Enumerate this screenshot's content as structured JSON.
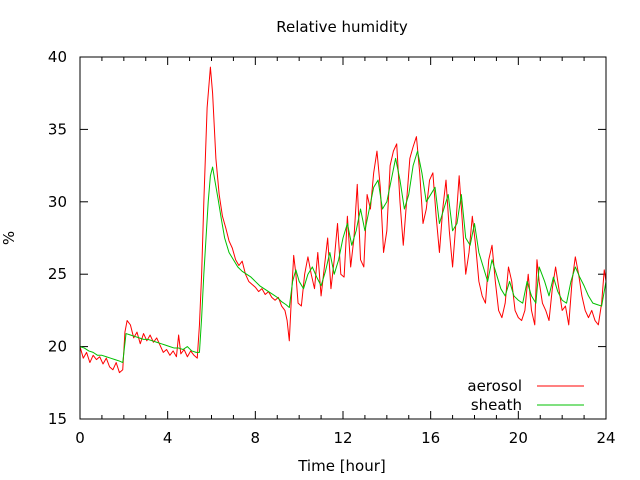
{
  "chart_data": {
    "type": "line",
    "title": "Relative humidity",
    "xlabel": "Time [hour]",
    "ylabel": "%",
    "xlim": [
      0,
      24
    ],
    "ylim": [
      15,
      40
    ],
    "x_ticks": [
      "0",
      "4",
      "8",
      "12",
      "16",
      "20",
      "24"
    ],
    "y_ticks": [
      "15",
      "20",
      "25",
      "30",
      "35",
      "40"
    ],
    "grid": false,
    "legend_position": "bottom-right",
    "series": [
      {
        "name": "aerosol",
        "color": "#ff0000",
        "points": [
          [
            0.0,
            20.0
          ],
          [
            0.15,
            19.2
          ],
          [
            0.3,
            19.6
          ],
          [
            0.45,
            18.9
          ],
          [
            0.6,
            19.4
          ],
          [
            0.75,
            19.1
          ],
          [
            0.9,
            19.3
          ],
          [
            1.05,
            18.8
          ],
          [
            1.2,
            19.2
          ],
          [
            1.35,
            18.6
          ],
          [
            1.5,
            18.4
          ],
          [
            1.65,
            18.9
          ],
          [
            1.8,
            18.2
          ],
          [
            1.95,
            18.4
          ],
          [
            2.05,
            21.0
          ],
          [
            2.15,
            21.8
          ],
          [
            2.3,
            21.5
          ],
          [
            2.45,
            20.6
          ],
          [
            2.6,
            21.0
          ],
          [
            2.75,
            20.2
          ],
          [
            2.9,
            20.9
          ],
          [
            3.05,
            20.4
          ],
          [
            3.2,
            20.8
          ],
          [
            3.35,
            20.3
          ],
          [
            3.5,
            20.6
          ],
          [
            3.65,
            20.1
          ],
          [
            3.8,
            19.6
          ],
          [
            3.95,
            19.8
          ],
          [
            4.1,
            19.4
          ],
          [
            4.25,
            19.7
          ],
          [
            4.4,
            19.3
          ],
          [
            4.5,
            20.8
          ],
          [
            4.6,
            19.5
          ],
          [
            4.75,
            19.8
          ],
          [
            4.9,
            19.3
          ],
          [
            5.05,
            19.7
          ],
          [
            5.2,
            19.4
          ],
          [
            5.35,
            19.2
          ],
          [
            5.45,
            21.5
          ],
          [
            5.55,
            25.0
          ],
          [
            5.65,
            30.0
          ],
          [
            5.8,
            36.5
          ],
          [
            5.95,
            39.3
          ],
          [
            6.05,
            37.5
          ],
          [
            6.2,
            33.0
          ],
          [
            6.35,
            30.5
          ],
          [
            6.5,
            29.0
          ],
          [
            6.65,
            28.2
          ],
          [
            6.8,
            27.3
          ],
          [
            6.95,
            26.8
          ],
          [
            7.1,
            26.0
          ],
          [
            7.25,
            25.6
          ],
          [
            7.4,
            25.9
          ],
          [
            7.55,
            25.0
          ],
          [
            7.7,
            24.5
          ],
          [
            7.85,
            24.3
          ],
          [
            8.0,
            24.1
          ],
          [
            8.15,
            23.8
          ],
          [
            8.3,
            24.0
          ],
          [
            8.45,
            23.6
          ],
          [
            8.6,
            23.8
          ],
          [
            8.75,
            23.4
          ],
          [
            8.9,
            23.2
          ],
          [
            9.05,
            23.4
          ],
          [
            9.2,
            22.8
          ],
          [
            9.35,
            22.5
          ],
          [
            9.45,
            21.8
          ],
          [
            9.55,
            20.4
          ],
          [
            9.65,
            23.5
          ],
          [
            9.75,
            26.3
          ],
          [
            9.85,
            25.0
          ],
          [
            9.95,
            23.0
          ],
          [
            10.1,
            22.8
          ],
          [
            10.25,
            25.0
          ],
          [
            10.4,
            26.2
          ],
          [
            10.55,
            25.0
          ],
          [
            10.7,
            24.0
          ],
          [
            10.85,
            26.5
          ],
          [
            11.0,
            23.5
          ],
          [
            11.15,
            25.5
          ],
          [
            11.3,
            27.5
          ],
          [
            11.45,
            24.0
          ],
          [
            11.6,
            26.0
          ],
          [
            11.75,
            28.5
          ],
          [
            11.9,
            25.0
          ],
          [
            12.05,
            24.8
          ],
          [
            12.2,
            29.0
          ],
          [
            12.35,
            25.5
          ],
          [
            12.5,
            27.5
          ],
          [
            12.65,
            31.2
          ],
          [
            12.8,
            26.0
          ],
          [
            12.95,
            25.5
          ],
          [
            13.1,
            30.5
          ],
          [
            13.25,
            29.5
          ],
          [
            13.4,
            32.0
          ],
          [
            13.55,
            33.5
          ],
          [
            13.7,
            31.0
          ],
          [
            13.85,
            26.5
          ],
          [
            14.0,
            28.0
          ],
          [
            14.15,
            32.5
          ],
          [
            14.3,
            33.5
          ],
          [
            14.45,
            34.0
          ],
          [
            14.6,
            30.0
          ],
          [
            14.75,
            27.0
          ],
          [
            14.9,
            30.0
          ],
          [
            15.05,
            33.0
          ],
          [
            15.2,
            33.8
          ],
          [
            15.35,
            34.5
          ],
          [
            15.5,
            32.0
          ],
          [
            15.65,
            28.5
          ],
          [
            15.8,
            29.5
          ],
          [
            15.95,
            31.5
          ],
          [
            16.1,
            32.0
          ],
          [
            16.25,
            29.0
          ],
          [
            16.4,
            26.5
          ],
          [
            16.55,
            29.5
          ],
          [
            16.7,
            31.5
          ],
          [
            16.85,
            28.0
          ],
          [
            17.0,
            25.5
          ],
          [
            17.15,
            28.5
          ],
          [
            17.3,
            31.8
          ],
          [
            17.45,
            28.5
          ],
          [
            17.6,
            25.0
          ],
          [
            17.75,
            26.5
          ],
          [
            17.9,
            29.0
          ],
          [
            18.05,
            27.0
          ],
          [
            18.2,
            24.5
          ],
          [
            18.35,
            23.5
          ],
          [
            18.5,
            23.0
          ],
          [
            18.65,
            26.0
          ],
          [
            18.8,
            27.0
          ],
          [
            18.95,
            24.5
          ],
          [
            19.1,
            22.5
          ],
          [
            19.25,
            22.0
          ],
          [
            19.4,
            23.0
          ],
          [
            19.55,
            25.5
          ],
          [
            19.7,
            24.5
          ],
          [
            19.85,
            22.5
          ],
          [
            20.0,
            22.0
          ],
          [
            20.15,
            21.8
          ],
          [
            20.3,
            22.5
          ],
          [
            20.45,
            25.0
          ],
          [
            20.6,
            22.5
          ],
          [
            20.75,
            21.5
          ],
          [
            20.85,
            26.0
          ],
          [
            20.95,
            24.5
          ],
          [
            21.1,
            23.0
          ],
          [
            21.25,
            22.5
          ],
          [
            21.4,
            21.8
          ],
          [
            21.55,
            24.0
          ],
          [
            21.7,
            25.5
          ],
          [
            21.85,
            24.0
          ],
          [
            22.0,
            22.5
          ],
          [
            22.15,
            22.8
          ],
          [
            22.3,
            21.5
          ],
          [
            22.45,
            24.5
          ],
          [
            22.6,
            26.2
          ],
          [
            22.75,
            25.0
          ],
          [
            22.9,
            23.5
          ],
          [
            23.05,
            22.5
          ],
          [
            23.2,
            22.0
          ],
          [
            23.35,
            22.5
          ],
          [
            23.5,
            21.8
          ],
          [
            23.65,
            21.5
          ],
          [
            23.8,
            23.0
          ],
          [
            23.92,
            25.3
          ],
          [
            24.0,
            24.5
          ]
        ]
      },
      {
        "name": "sheath",
        "color": "#00c000",
        "points": [
          [
            0.0,
            20.0
          ],
          [
            0.2,
            19.9
          ],
          [
            0.4,
            19.7
          ],
          [
            0.6,
            19.6
          ],
          [
            0.8,
            19.4
          ],
          [
            1.0,
            19.4
          ],
          [
            1.2,
            19.3
          ],
          [
            1.4,
            19.2
          ],
          [
            1.6,
            19.1
          ],
          [
            1.8,
            19.0
          ],
          [
            1.95,
            18.9
          ],
          [
            2.1,
            20.9
          ],
          [
            2.3,
            20.8
          ],
          [
            2.5,
            20.7
          ],
          [
            2.7,
            20.6
          ],
          [
            2.9,
            20.5
          ],
          [
            3.1,
            20.5
          ],
          [
            3.3,
            20.4
          ],
          [
            3.5,
            20.3
          ],
          [
            3.7,
            20.2
          ],
          [
            3.9,
            20.1
          ],
          [
            4.1,
            20.0
          ],
          [
            4.3,
            19.9
          ],
          [
            4.5,
            19.9
          ],
          [
            4.7,
            19.8
          ],
          [
            4.9,
            20.0
          ],
          [
            5.1,
            19.7
          ],
          [
            5.3,
            19.6
          ],
          [
            5.45,
            19.6
          ],
          [
            5.55,
            22.0
          ],
          [
            5.65,
            25.0
          ],
          [
            5.75,
            27.5
          ],
          [
            5.85,
            30.0
          ],
          [
            5.95,
            31.8
          ],
          [
            6.05,
            32.4
          ],
          [
            6.15,
            31.5
          ],
          [
            6.3,
            30.2
          ],
          [
            6.45,
            28.8
          ],
          [
            6.6,
            27.5
          ],
          [
            6.8,
            26.5
          ],
          [
            7.0,
            26.0
          ],
          [
            7.2,
            25.5
          ],
          [
            7.4,
            25.2
          ],
          [
            7.6,
            25.0
          ],
          [
            7.8,
            24.8
          ],
          [
            8.0,
            24.5
          ],
          [
            8.2,
            24.2
          ],
          [
            8.4,
            24.0
          ],
          [
            8.6,
            23.8
          ],
          [
            8.8,
            23.6
          ],
          [
            9.0,
            23.4
          ],
          [
            9.2,
            23.1
          ],
          [
            9.4,
            22.9
          ],
          [
            9.55,
            22.7
          ],
          [
            9.7,
            24.5
          ],
          [
            9.85,
            25.3
          ],
          [
            10.0,
            24.5
          ],
          [
            10.2,
            24.0
          ],
          [
            10.4,
            25.0
          ],
          [
            10.6,
            25.5
          ],
          [
            10.8,
            24.8
          ],
          [
            11.0,
            24.2
          ],
          [
            11.2,
            25.2
          ],
          [
            11.4,
            26.5
          ],
          [
            11.6,
            25.0
          ],
          [
            11.8,
            26.0
          ],
          [
            12.0,
            27.5
          ],
          [
            12.2,
            28.5
          ],
          [
            12.4,
            27.0
          ],
          [
            12.6,
            28.0
          ],
          [
            12.8,
            29.5
          ],
          [
            13.0,
            28.0
          ],
          [
            13.2,
            29.5
          ],
          [
            13.4,
            31.0
          ],
          [
            13.6,
            31.5
          ],
          [
            13.8,
            29.5
          ],
          [
            14.0,
            30.0
          ],
          [
            14.2,
            31.5
          ],
          [
            14.4,
            33.0
          ],
          [
            14.6,
            31.5
          ],
          [
            14.8,
            29.5
          ],
          [
            15.0,
            30.5
          ],
          [
            15.2,
            32.5
          ],
          [
            15.4,
            33.5
          ],
          [
            15.6,
            32.0
          ],
          [
            15.8,
            30.0
          ],
          [
            16.0,
            30.5
          ],
          [
            16.2,
            31.0
          ],
          [
            16.4,
            28.5
          ],
          [
            16.6,
            29.5
          ],
          [
            16.8,
            30.5
          ],
          [
            17.0,
            28.0
          ],
          [
            17.2,
            28.5
          ],
          [
            17.4,
            30.5
          ],
          [
            17.6,
            27.5
          ],
          [
            17.8,
            27.0
          ],
          [
            18.0,
            28.5
          ],
          [
            18.2,
            26.5
          ],
          [
            18.4,
            25.5
          ],
          [
            18.6,
            24.5
          ],
          [
            18.8,
            26.0
          ],
          [
            19.0,
            25.0
          ],
          [
            19.2,
            24.0
          ],
          [
            19.4,
            23.5
          ],
          [
            19.6,
            24.5
          ],
          [
            19.8,
            23.5
          ],
          [
            20.0,
            23.2
          ],
          [
            20.2,
            23.0
          ],
          [
            20.4,
            24.5
          ],
          [
            20.6,
            23.5
          ],
          [
            20.8,
            23.0
          ],
          [
            20.95,
            25.5
          ],
          [
            21.2,
            24.5
          ],
          [
            21.4,
            23.5
          ],
          [
            21.6,
            24.8
          ],
          [
            21.8,
            23.8
          ],
          [
            22.0,
            23.2
          ],
          [
            22.2,
            23.0
          ],
          [
            22.4,
            24.5
          ],
          [
            22.6,
            25.5
          ],
          [
            22.8,
            24.8
          ],
          [
            23.0,
            24.2
          ],
          [
            23.2,
            23.5
          ],
          [
            23.4,
            23.0
          ],
          [
            23.6,
            22.9
          ],
          [
            23.8,
            22.8
          ],
          [
            24.0,
            24.5
          ]
        ]
      }
    ]
  }
}
